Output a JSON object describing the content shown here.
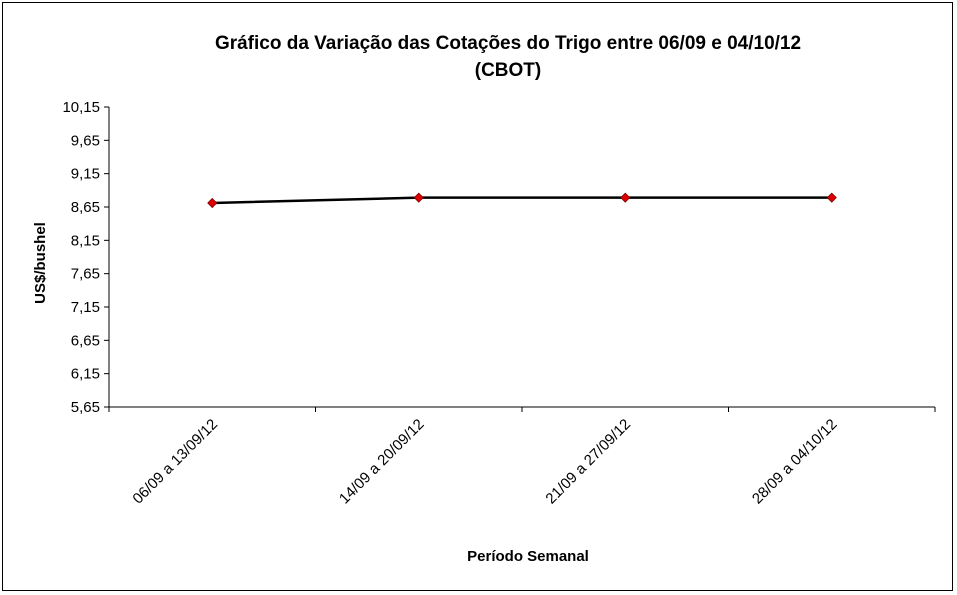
{
  "chart_data": {
    "type": "line",
    "title_lines": [
      "Gráfico da Variação das Cotações do Trigo entre 06/09 e 04/10/12",
      "(CBOT)"
    ],
    "xlabel": "Período Semanal",
    "ylabel": "US$/bushel",
    "categories": [
      "06/09 a 13/09/12",
      "14/09 a 20/09/12",
      "21/09 a 27/09/12",
      "28/09 a 04/10/12"
    ],
    "y_ticks": [
      "10,15",
      "9,65",
      "9,15",
      "8,65",
      "8,15",
      "7,65",
      "7,15",
      "6,65",
      "6,15",
      "5,65"
    ],
    "ylim": [
      5.65,
      10.15
    ],
    "series": [
      {
        "values": [
          8.71,
          8.79,
          8.79,
          8.79
        ]
      }
    ],
    "grid": false,
    "legend": "none",
    "colors": {
      "line": "#000000",
      "marker": "#e00000",
      "marker_stroke": "#7a0000"
    }
  }
}
